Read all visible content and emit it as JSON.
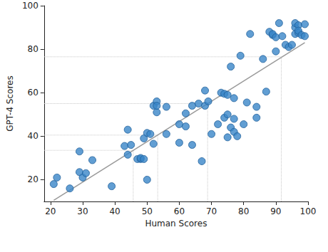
{
  "chart_data": {
    "type": "scatter",
    "x_label": "Human Scores",
    "y_label": "GPT-4 Scores",
    "x": [
      21,
      22,
      26,
      29,
      29,
      30,
      31,
      33,
      39,
      43,
      44,
      44,
      45,
      47,
      48,
      48,
      49,
      49,
      50,
      50,
      51,
      52,
      52,
      53,
      53,
      53,
      56,
      56,
      60,
      60,
      62,
      62,
      64,
      64,
      66,
      67,
      68,
      68,
      69,
      70,
      72,
      73,
      74,
      74,
      75,
      75,
      75,
      76,
      76,
      77,
      77,
      77,
      78,
      79,
      80,
      81,
      82,
      84,
      84,
      86,
      87,
      88,
      89,
      89,
      90,
      90,
      91,
      92,
      93,
      94,
      95,
      96,
      96,
      96,
      97,
      97,
      97,
      98,
      99,
      99
    ],
    "y": [
      18,
      21,
      16,
      33,
      23.5,
      21,
      23,
      29,
      17,
      35.5,
      43,
      31.5,
      36,
      29.5,
      29.5,
      30,
      29.5,
      39,
      41.5,
      20,
      41,
      36.5,
      54,
      51,
      56,
      54,
      53.5,
      41,
      45.5,
      37,
      44.5,
      50.5,
      36,
      54,
      55,
      28.5,
      54,
      61,
      56,
      41,
      45.5,
      60,
      59.5,
      48.5,
      59,
      50,
      39.5,
      44,
      72,
      48,
      42,
      57.5,
      40,
      77,
      45.5,
      55.5,
      87,
      53.5,
      48.5,
      75.5,
      60.5,
      88,
      86.5,
      87,
      85.5,
      79,
      92,
      86,
      82,
      81,
      82,
      90,
      87,
      92,
      91,
      87.5,
      88.5,
      86.5,
      91.5,
      86
    ],
    "color": "#3a86c8",
    "marker": "circle",
    "xlim": [
      18,
      100
    ],
    "xticks": [
      20,
      30,
      40,
      50,
      60,
      70,
      80,
      90,
      100
    ],
    "ylim": [
      10,
      100
    ],
    "yticks": [
      20,
      40,
      60,
      80,
      100
    ],
    "grid": false,
    "fit_line": {
      "x": [
        21,
        99
      ],
      "y": [
        10.5,
        83
      ]
    },
    "guides": [
      {
        "x": 45.7,
        "y": 33.5
      },
      {
        "x": 53.3,
        "y": 40.5
      },
      {
        "x": 68.8,
        "y": 55
      },
      {
        "x": 91.7,
        "y": 76.5
      }
    ]
  }
}
